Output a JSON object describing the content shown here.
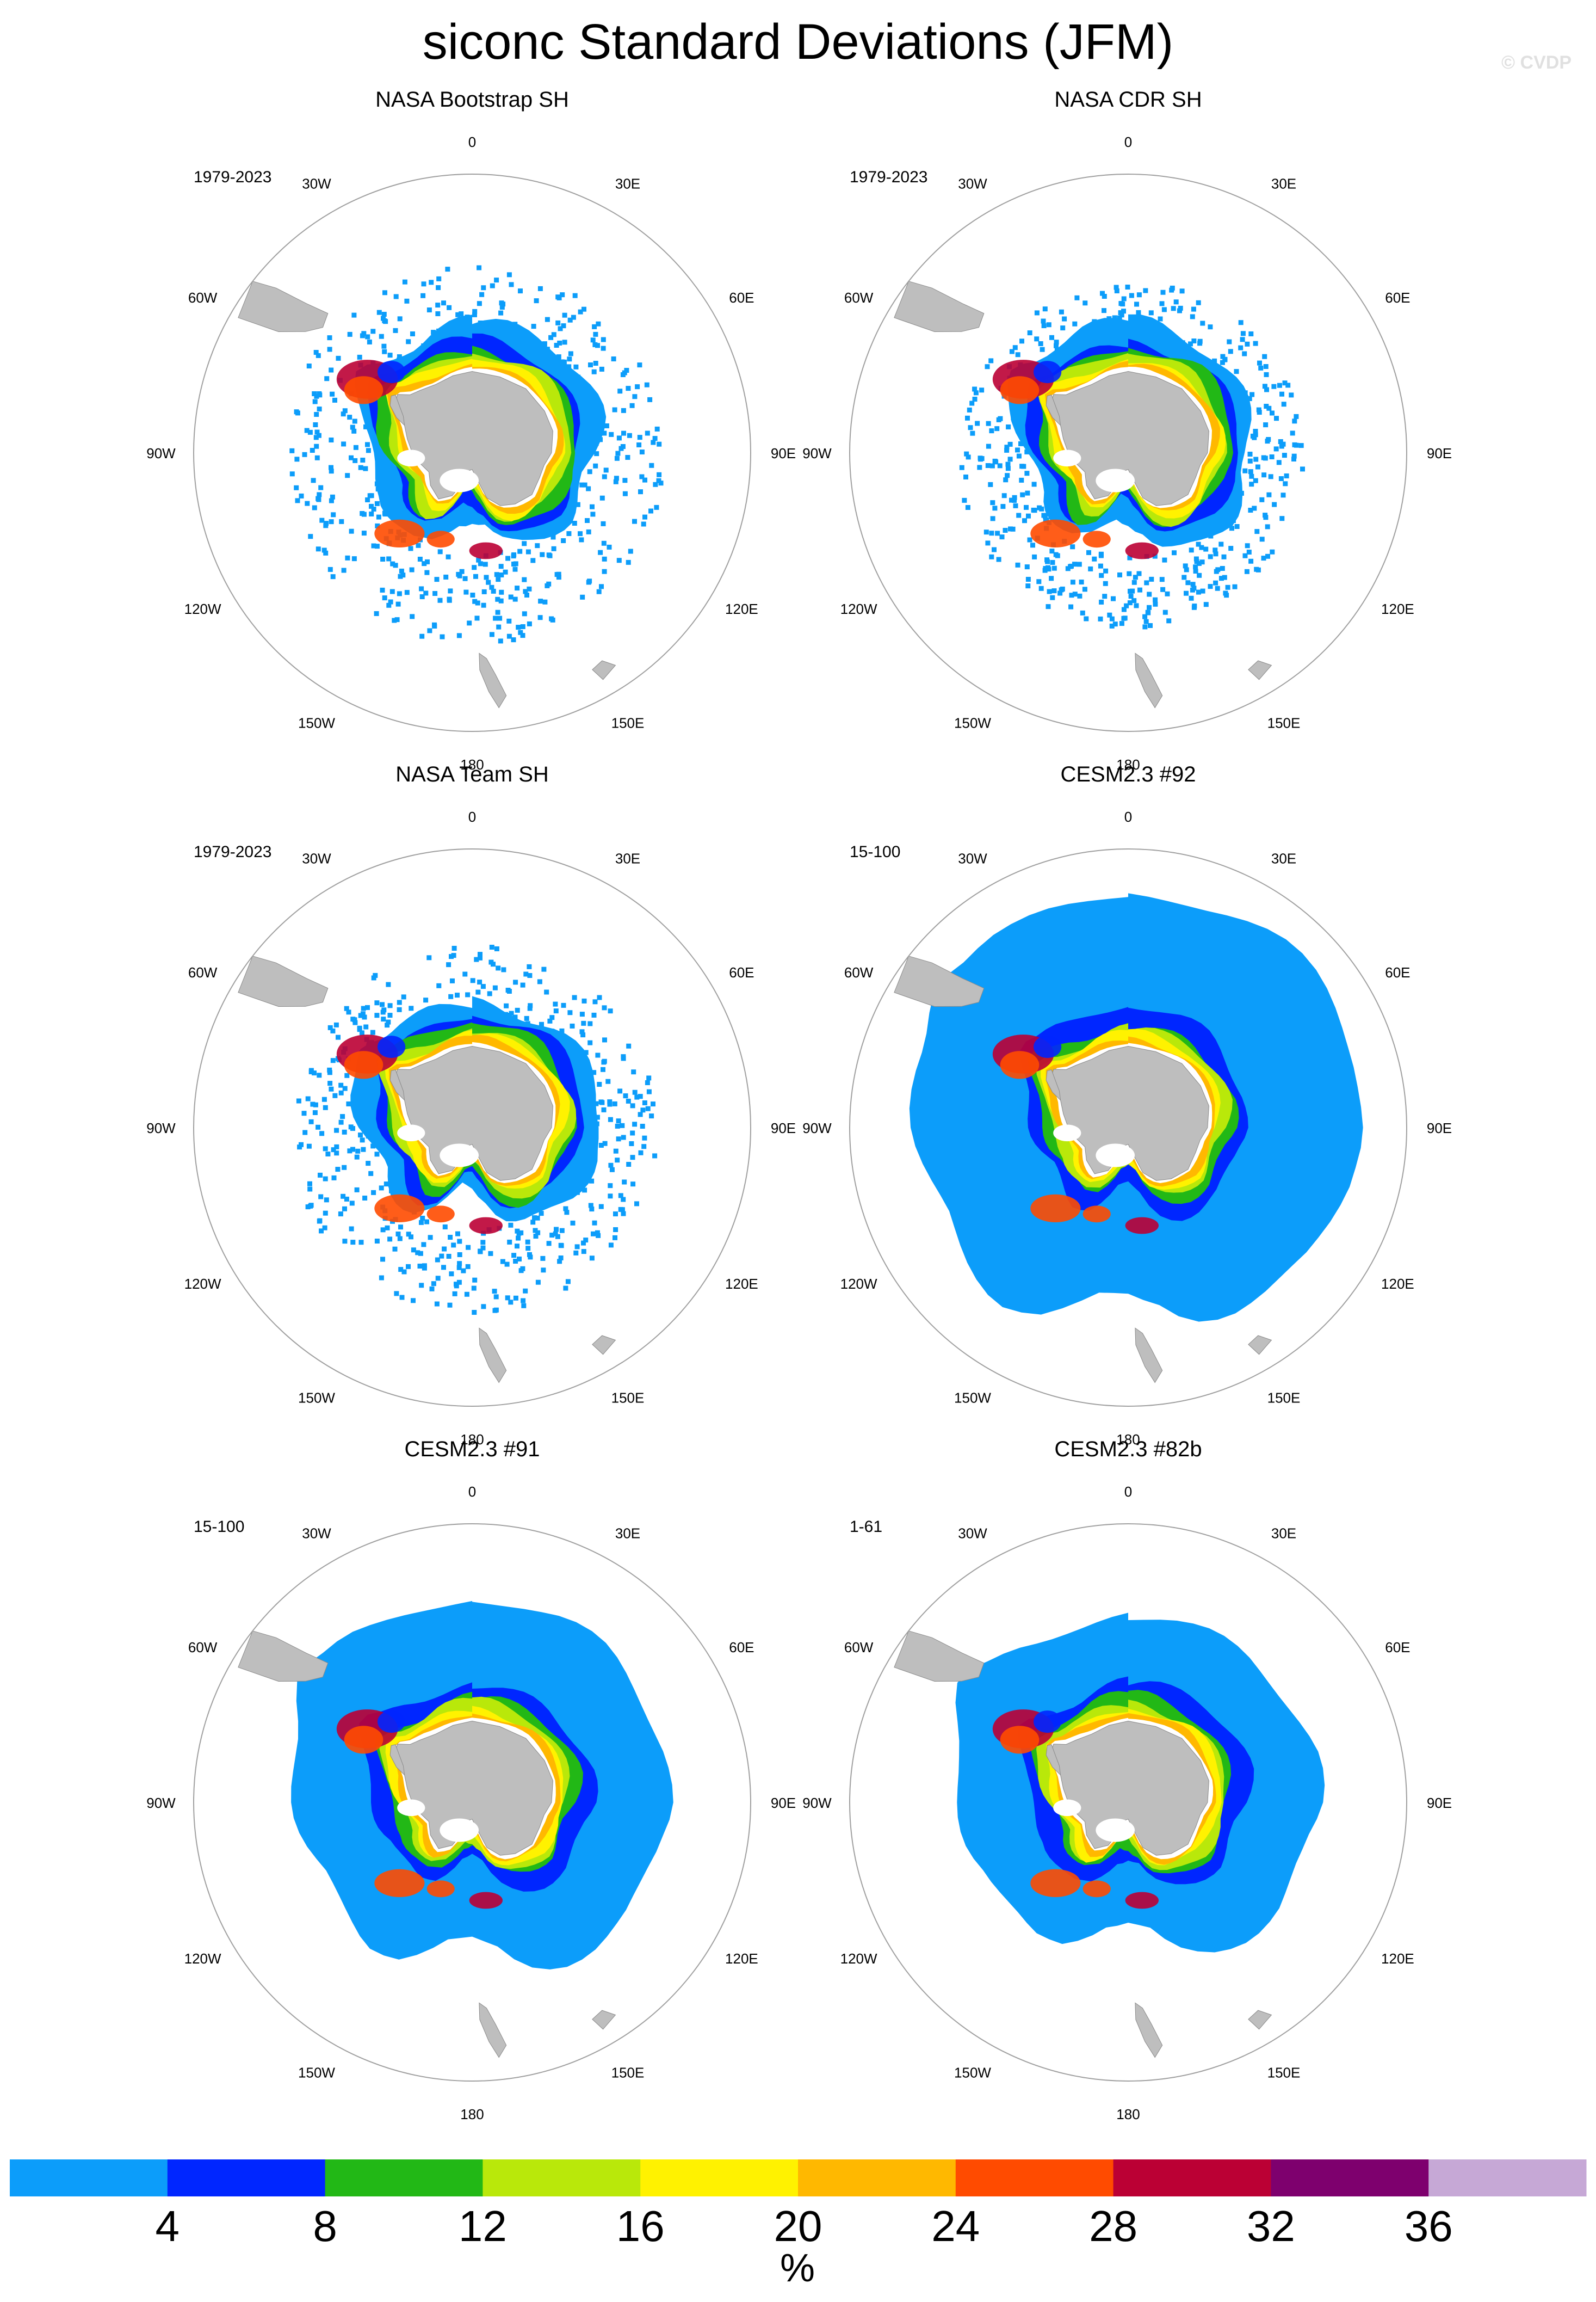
{
  "figure": {
    "title": "siconc Standard Deviations (JFM)",
    "credit": "© CVDP"
  },
  "longitude_labels": [
    "0",
    "30E",
    "60E",
    "90E",
    "120E",
    "150E",
    "180",
    "150W",
    "120W",
    "90W",
    "60W",
    "30W"
  ],
  "chart_data": {
    "type": "heatmap",
    "projection": "south polar stereographic",
    "variable": "siconc",
    "statistic": "Standard Deviations",
    "season": "JFM",
    "land_color": "#bebebe",
    "panels": [
      {
        "title": "NASA Bootstrap SH",
        "period": "1979-2023",
        "style": "obs",
        "ice_extent": 0.62,
        "ice_extent_ratio": 0.62
      },
      {
        "title": "NASA CDR SH",
        "period": "1979-2023",
        "style": "obs",
        "ice_extent": 0.56,
        "ice_extent_ratio": 0.56
      },
      {
        "title": "NASA Team SH",
        "period": "1979-2023",
        "style": "obs",
        "ice_extent": 0.6,
        "ice_extent_ratio": 0.6
      },
      {
        "title": "CESM2.3 #92",
        "period": "15-100",
        "style": "model",
        "ice_extent": 0.84,
        "ice_extent_ratio": 0.84
      },
      {
        "title": "CESM2.3 #91",
        "period": "15-100",
        "style": "model",
        "ice_extent": 0.72,
        "ice_extent_ratio": 0.72
      },
      {
        "title": "CESM2.3 #82b",
        "period": "1-61",
        "style": "model",
        "ice_extent": 0.68,
        "ice_extent_ratio": 0.68
      }
    ],
    "colorbar": {
      "unit": "%",
      "tick_labels": [
        "4",
        "8",
        "12",
        "16",
        "20",
        "24",
        "28",
        "32",
        "36"
      ],
      "colors": [
        "#0c9dfa",
        "#0026ff",
        "#22b816",
        "#b9e80a",
        "#fff200",
        "#ffb800",
        "#ff4b00",
        "#bb0034",
        "#7e006e",
        "#c6a8d6"
      ]
    }
  }
}
